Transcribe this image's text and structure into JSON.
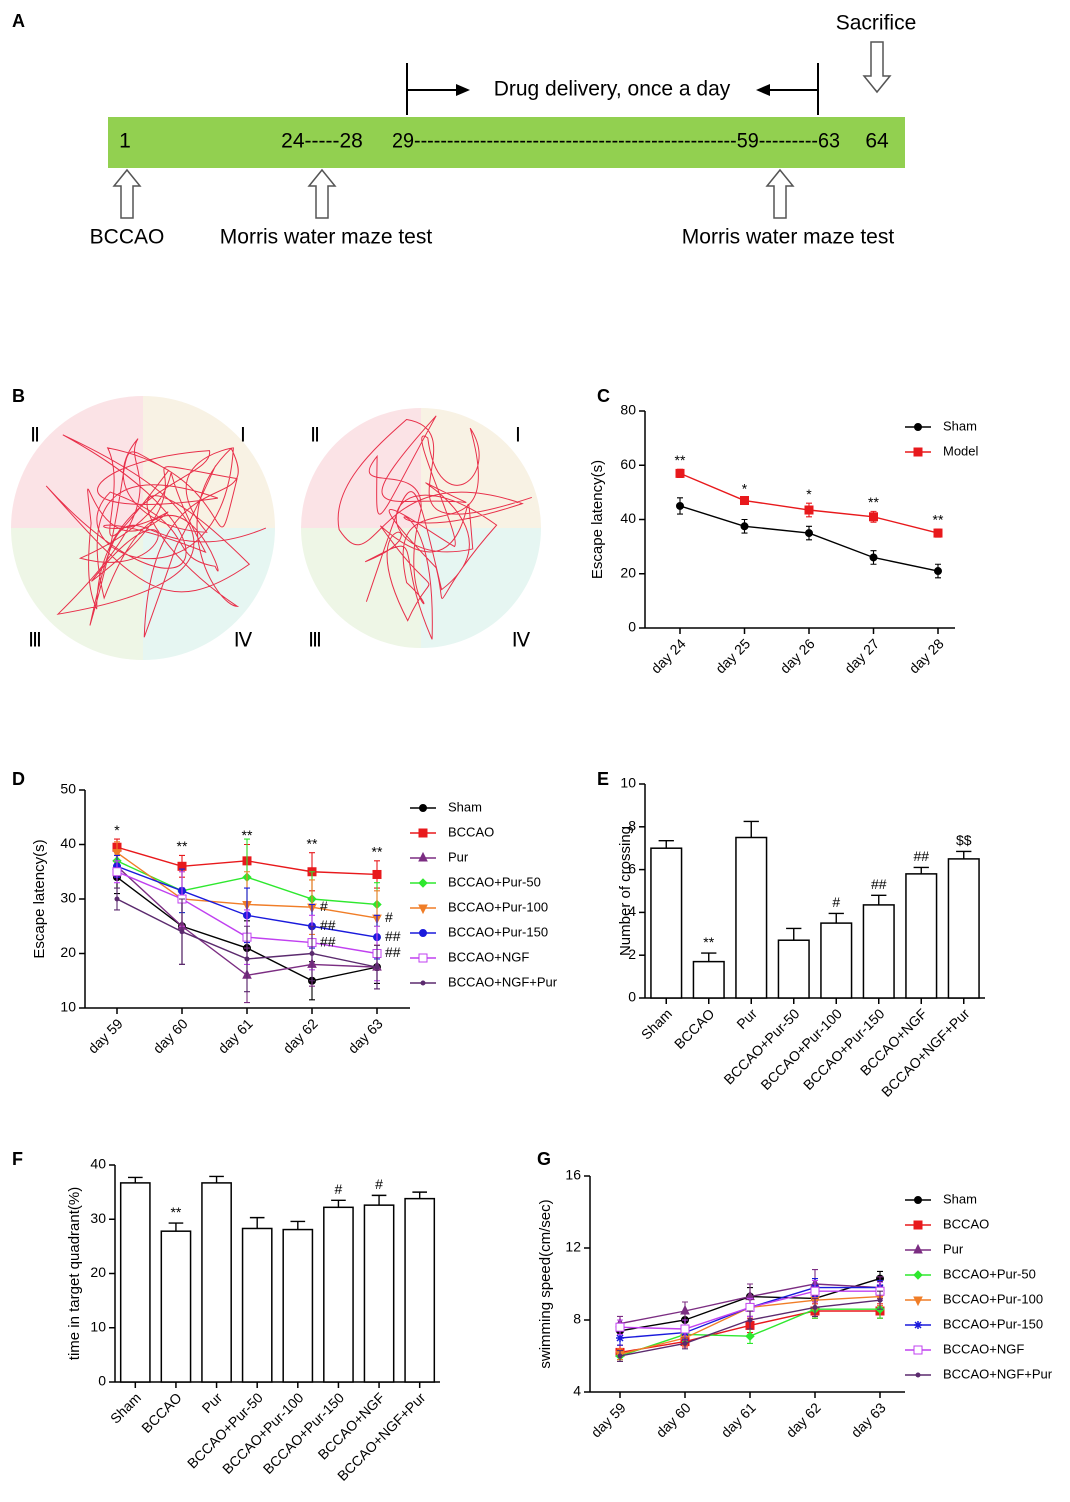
{
  "panel_A": {
    "label": "A",
    "day_labels": [
      "1",
      "24-----28",
      "29-------------------------------------------------59---------63",
      "64"
    ],
    "drug_label": "Drug delivery, once a day",
    "sacrifice": "Sacrifice",
    "events": [
      "BCCAO",
      "Morris water maze test",
      "Morris water maze test"
    ]
  },
  "panel_B": {
    "label": "B",
    "quadrants": [
      "Ⅱ",
      "Ⅰ",
      "Ⅲ",
      "Ⅳ"
    ]
  },
  "chart_data": [
    {
      "type": "line",
      "label": "C",
      "y_label": "Escape latency(s)",
      "categories": [
        "day 24",
        "day 25",
        "day 26",
        "day 27",
        "day 28"
      ],
      "ylim": [
        0,
        80
      ],
      "yticks": [
        0,
        20,
        40,
        60,
        80
      ],
      "legend": "upper right",
      "series": [
        {
          "name": "Sham",
          "color": "#000000",
          "marker": "circle",
          "values": [
            45,
            37.5,
            35,
            26,
            21
          ],
          "errors": [
            3,
            2.5,
            2.5,
            2.5,
            2.5
          ]
        },
        {
          "name": "Model",
          "color": "#e8191c",
          "marker": "square",
          "values": [
            57,
            47,
            43.5,
            41,
            35
          ],
          "errors": [
            1.5,
            1,
            2.5,
            2,
            1.5
          ],
          "annotations": [
            "**",
            "*",
            "*",
            "**",
            "**"
          ]
        }
      ]
    },
    {
      "type": "line",
      "label": "D",
      "y_label": "Escape latency(s)",
      "categories": [
        "day 59",
        "day 60",
        "day 61",
        "day 62",
        "day 63"
      ],
      "ylim": [
        10,
        50
      ],
      "yticks": [
        10,
        20,
        30,
        40,
        50
      ],
      "legend": "right",
      "series": [
        {
          "name": "Sham",
          "color": "#000000",
          "marker": "circle",
          "values": [
            34,
            25,
            21,
            15,
            17.5
          ],
          "errors": [
            3,
            7,
            5,
            3.5,
            3
          ]
        },
        {
          "name": "BCCAO",
          "color": "#e8191c",
          "marker": "square",
          "values": [
            39.5,
            36,
            37,
            35,
            34.5
          ],
          "errors": [
            1.5,
            2,
            3,
            3.5,
            2.5
          ],
          "annotations": [
            "*",
            "**",
            "**",
            "**",
            "**"
          ]
        },
        {
          "name": "Pur",
          "color": "#7b2d82",
          "marker": "triangle",
          "values": [
            36,
            25,
            16,
            18,
            17.5
          ],
          "errors": [
            2,
            7,
            5,
            4,
            4
          ]
        },
        {
          "name": "BCCAO+Pur-50",
          "color": "#2ee82e",
          "marker": "diamond",
          "values": [
            37,
            31.5,
            34,
            30,
            29
          ],
          "errors": [
            2,
            4,
            7,
            5,
            4
          ]
        },
        {
          "name": "BCCAO+Pur-100",
          "color": "#f07d27",
          "marker": "triangle-down",
          "values": [
            38.5,
            30,
            29,
            28.5,
            26.5
          ],
          "errors": [
            2,
            5,
            6,
            5,
            5
          ],
          "annotations": [
            null,
            null,
            null,
            "#",
            "#"
          ]
        },
        {
          "name": "BCCAO+Pur-150",
          "color": "#1a1adc",
          "marker": "circle",
          "values": [
            36,
            31.5,
            27,
            25,
            23
          ],
          "errors": [
            2,
            4,
            5,
            4,
            4
          ],
          "annotations": [
            null,
            null,
            null,
            "##",
            "##"
          ]
        },
        {
          "name": "BCCAO+NGF",
          "color": "#c040f0",
          "marker": "square-open",
          "values": [
            35,
            30,
            23,
            22,
            20
          ],
          "errors": [
            2,
            5,
            5,
            5,
            5
          ],
          "annotations": [
            null,
            null,
            null,
            "##",
            "##"
          ]
        },
        {
          "name": "BCCAO+NGF+Pur",
          "color": "#5b2a6e",
          "marker": "dot",
          "values": [
            30,
            24,
            19,
            20,
            17.5
          ],
          "errors": [
            2,
            6,
            6,
            5,
            4
          ]
        }
      ]
    },
    {
      "type": "bar",
      "label": "E",
      "y_label": "Number of crossing",
      "categories": [
        "Sham",
        "BCCAO",
        "Pur",
        "BCCAO+Pur-50",
        "BCCAO+Pur-100",
        "BCCAO+Pur-150",
        "BCCAO+NGF",
        "BCCAO+NGF+Pur"
      ],
      "values": [
        7,
        1.7,
        7.5,
        2.7,
        3.5,
        4.35,
        5.8,
        6.5
      ],
      "errors": [
        0.35,
        0.4,
        0.75,
        0.55,
        0.45,
        0.45,
        0.3,
        0.35
      ],
      "annotations": [
        null,
        "**",
        null,
        null,
        "#",
        "##",
        "##",
        "$$"
      ],
      "ylim": [
        0,
        10
      ],
      "yticks": [
        0,
        2,
        4,
        6,
        8,
        10
      ],
      "color": "#ffffff"
    },
    {
      "type": "bar",
      "label": "F",
      "y_label": "time in target quadrant(%)",
      "categories": [
        "Sham",
        "BCCAO",
        "Pur",
        "BCCAO+Pur-50",
        "BCCAO+Pur-100",
        "BCCAO+Pur-150",
        "BCCAO+NGF",
        "BCCAO+NGF+Pur"
      ],
      "values": [
        36.7,
        27.8,
        36.7,
        28.3,
        28.1,
        32.2,
        32.6,
        33.8
      ],
      "errors": [
        1,
        1.5,
        1.2,
        2,
        1.5,
        1.3,
        1.8,
        1.2
      ],
      "annotations": [
        null,
        "**",
        null,
        null,
        null,
        "#",
        "#",
        null
      ],
      "ylim": [
        0,
        40
      ],
      "yticks": [
        0,
        10,
        20,
        30,
        40
      ],
      "color": "#ffffff"
    },
    {
      "type": "line",
      "label": "G",
      "y_label": "swimming speed(cm/sec)",
      "categories": [
        "day 59",
        "day 60",
        "day 61",
        "day 62",
        "day 63"
      ],
      "ylim": [
        4,
        16
      ],
      "yticks": [
        4,
        8,
        12,
        16
      ],
      "legend": "right",
      "series": [
        {
          "name": "Sham",
          "color": "#000000",
          "marker": "circle",
          "values": [
            7.4,
            8.0,
            9.3,
            9.2,
            10.3
          ],
          "errors": [
            0.4,
            0.4,
            0.5,
            0.5,
            0.4
          ]
        },
        {
          "name": "BCCAO",
          "color": "#e8191c",
          "marker": "square",
          "values": [
            6.2,
            6.8,
            7.7,
            8.5,
            8.5
          ],
          "errors": [
            0.4,
            0.3,
            0.4,
            0.4,
            0.4
          ]
        },
        {
          "name": "Pur",
          "color": "#7b2d82",
          "marker": "triangle",
          "values": [
            7.8,
            8.5,
            9.3,
            10,
            9.8
          ],
          "errors": [
            0.4,
            0.5,
            0.7,
            0.8,
            0.6
          ]
        },
        {
          "name": "BCCAO+Pur-50",
          "color": "#2ee82e",
          "marker": "diamond",
          "values": [
            6.0,
            7.2,
            7.1,
            8.6,
            8.6
          ],
          "errors": [
            0.3,
            0.4,
            0.4,
            0.5,
            0.5
          ]
        },
        {
          "name": "BCCAO+Pur-100",
          "color": "#f07d27",
          "marker": "triangle-down",
          "values": [
            6.1,
            7.0,
            8.7,
            9.1,
            9.3
          ],
          "errors": [
            0.3,
            0.4,
            0.5,
            0.5,
            0.5
          ]
        },
        {
          "name": "BCCAO+Pur-150",
          "color": "#1a1adc",
          "marker": "star",
          "values": [
            7.0,
            7.3,
            8.7,
            9.8,
            9.8
          ],
          "errors": [
            0.4,
            0.4,
            0.5,
            0.5,
            0.4
          ]
        },
        {
          "name": "BCCAO+NGF",
          "color": "#c040f0",
          "marker": "square-open",
          "values": [
            7.6,
            7.5,
            8.7,
            9.6,
            9.6
          ],
          "errors": [
            0.4,
            0.5,
            0.5,
            0.6,
            0.5
          ]
        },
        {
          "name": "BCCAO+NGF+Pur",
          "color": "#5b2a6e",
          "marker": "dot",
          "values": [
            6.0,
            6.7,
            8.0,
            8.7,
            9.1
          ],
          "errors": [
            0.3,
            0.3,
            0.5,
            0.5,
            0.5
          ]
        }
      ]
    }
  ]
}
